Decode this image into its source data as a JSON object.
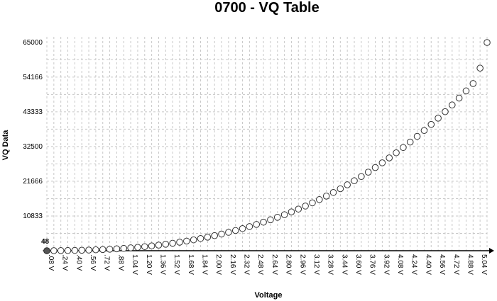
{
  "chart_data": {
    "type": "scatter",
    "title": "0700 - VQ Table",
    "xlabel": "Voltage",
    "ylabel": "VQ Data",
    "grid": true,
    "x_unit": "V",
    "x_ticks": [
      0.08,
      0.24,
      0.4,
      0.56,
      0.72,
      0.88,
      1.04,
      1.2,
      1.36,
      1.52,
      1.68,
      1.84,
      2.0,
      2.16,
      2.32,
      2.48,
      2.64,
      2.8,
      2.96,
      3.12,
      3.28,
      3.44,
      3.6,
      3.76,
      3.92,
      4.08,
      4.24,
      4.4,
      4.56,
      4.72,
      4.88,
      5.04
    ],
    "x_tick_labels": [
      ".08 V",
      ".24 V",
      ".40 V",
      ".56 V",
      ".72 V",
      ".88 V",
      "1.04 V",
      "1.20 V",
      "1.36 V",
      "1.52 V",
      "1.68 V",
      "1.84 V",
      "2.00 V",
      "2.16 V",
      "2.32 V",
      "2.48 V",
      "2.64 V",
      "2.80 V",
      "2.96 V",
      "3.12 V",
      "3.28 V",
      "3.44 V",
      "3.60 V",
      "3.76 V",
      "3.92 V",
      "4.08 V",
      "4.24 V",
      "4.40 V",
      "4.56 V",
      "4.72 V",
      "4.88 V",
      "5.04 V"
    ],
    "y_ticks": [
      10833,
      21666,
      32500,
      43333,
      54166,
      65000
    ],
    "y_tick_labels": [
      "10833",
      "21666",
      "32500",
      "43333",
      "54166",
      "65000"
    ],
    "y_min_label": "48",
    "xlim": [
      0.08,
      5.12
    ],
    "ylim": [
      48,
      65000
    ],
    "x": [
      0.08,
      0.16,
      0.24,
      0.32,
      0.4,
      0.48,
      0.56,
      0.64,
      0.72,
      0.8,
      0.88,
      0.96,
      1.04,
      1.12,
      1.2,
      1.28,
      1.36,
      1.44,
      1.52,
      1.6,
      1.68,
      1.76,
      1.84,
      1.92,
      2.0,
      2.08,
      2.16,
      2.24,
      2.32,
      2.4,
      2.48,
      2.56,
      2.64,
      2.72,
      2.8,
      2.88,
      2.96,
      3.04,
      3.12,
      3.2,
      3.28,
      3.36,
      3.44,
      3.52,
      3.6,
      3.68,
      3.76,
      3.84,
      3.92,
      4.0,
      4.08,
      4.16,
      4.24,
      4.32,
      4.4,
      4.48,
      4.56,
      4.64,
      4.72,
      4.8,
      4.88,
      4.96,
      5.04,
      5.12
    ],
    "y": [
      48,
      60,
      80,
      110,
      150,
      200,
      260,
      330,
      420,
      520,
      640,
      780,
      940,
      1120,
      1320,
      1550,
      1800,
      2080,
      2380,
      2710,
      3060,
      3440,
      3850,
      4290,
      4760,
      5260,
      5790,
      6350,
      6950,
      7580,
      8250,
      8950,
      9690,
      10470,
      11290,
      12150,
      13050,
      13990,
      14980,
      16010,
      17090,
      18210,
      19380,
      20600,
      21870,
      23190,
      24560,
      25990,
      27470,
      29000,
      30590,
      32240,
      33950,
      35720,
      37550,
      39440,
      41400,
      43420,
      45510,
      47670,
      49900,
      52200,
      57000,
      65000
    ]
  }
}
